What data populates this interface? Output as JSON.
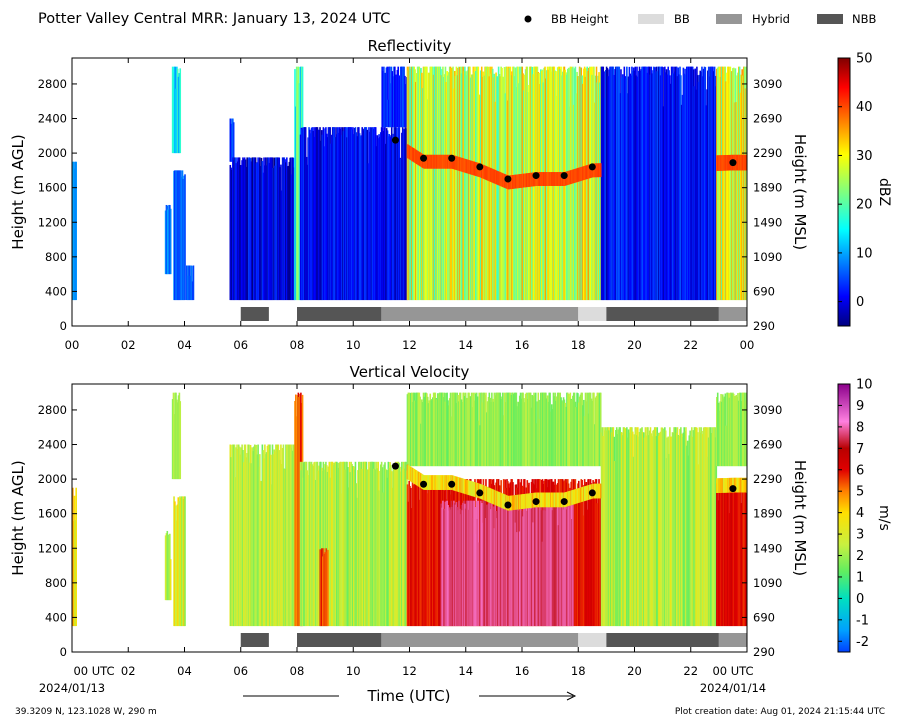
{
  "header": {
    "title": "Potter Valley Central MRR:  January 13, 2024 UTC",
    "legend": [
      {
        "label": "BB Height",
        "kind": "marker",
        "color": "#000000"
      },
      {
        "label": "BB",
        "kind": "box",
        "color": "#dcdcdc"
      },
      {
        "label": "Hybrid",
        "kind": "box",
        "color": "#969696"
      },
      {
        "label": "NBB",
        "kind": "box",
        "color": "#555555"
      }
    ]
  },
  "footer": {
    "location": "39.3209 N, 123.1028 W, 290 m",
    "creation_date": "Plot creation date: Aug 01, 2024 21:15:44 UTC"
  },
  "chart_data": [
    {
      "type": "heatmap",
      "title": "Reflectivity",
      "ylabel": "Height (m AGL)",
      "ylabel_right": "Height (m MSL)",
      "xlim": [
        0,
        24
      ],
      "ylim": [
        0,
        3100
      ],
      "x_ticks": [
        "00",
        "02",
        "04",
        "06",
        "08",
        "10",
        "12",
        "14",
        "16",
        "18",
        "20",
        "22",
        "00"
      ],
      "y_ticks": [
        0,
        400,
        800,
        1200,
        1600,
        2000,
        2400,
        2800
      ],
      "y_ticks_right": [
        "290",
        "690",
        "1090",
        "1490",
        "1890",
        "2290",
        "2690",
        "3090"
      ],
      "colorbar": {
        "label": "dBZ",
        "min": -5,
        "max": 50,
        "ticks": [
          "0",
          "10",
          "20",
          "30",
          "40",
          "50"
        ],
        "tick_values": [
          0,
          10,
          20,
          30,
          40,
          50
        ],
        "colormap": "jet"
      },
      "bb_height": [
        {
          "x": 11.5,
          "y": 2150
        },
        {
          "x": 12.5,
          "y": 1940
        },
        {
          "x": 13.5,
          "y": 1940
        },
        {
          "x": 14.5,
          "y": 1840
        },
        {
          "x": 15.5,
          "y": 1700
        },
        {
          "x": 16.5,
          "y": 1740
        },
        {
          "x": 17.5,
          "y": 1740
        },
        {
          "x": 18.5,
          "y": 1840
        },
        {
          "x": 23.5,
          "y": 1890
        }
      ],
      "rain_type_segments": [
        {
          "start": 6.0,
          "end": 7.0,
          "type": "NBB"
        },
        {
          "start": 8.0,
          "end": 11.0,
          "type": "NBB"
        },
        {
          "start": 11.0,
          "end": 18.0,
          "type": "Hybrid"
        },
        {
          "start": 18.0,
          "end": 19.0,
          "type": "BB"
        },
        {
          "start": 19.0,
          "end": 23.0,
          "type": "NBB"
        },
        {
          "start": 23.0,
          "end": 24.0,
          "type": "Hybrid"
        }
      ],
      "blocks": [
        {
          "x0": 0.0,
          "x1": 0.15,
          "ymin": 300,
          "ymax": 1900,
          "lo": 5,
          "hi": 12
        },
        {
          "x0": 3.3,
          "x1": 3.5,
          "ymin": 600,
          "ymax": 1400,
          "lo": 4,
          "hi": 12
        },
        {
          "x0": 3.55,
          "x1": 3.85,
          "ymin": 2000,
          "ymax": 3000,
          "lo": 8,
          "hi": 20
        },
        {
          "x0": 3.6,
          "x1": 4.0,
          "ymin": 300,
          "ymax": 1800,
          "lo": 3,
          "hi": 10
        },
        {
          "x0": 4.05,
          "x1": 4.3,
          "ymin": 300,
          "ymax": 700,
          "lo": 3,
          "hi": 8
        },
        {
          "x0": 5.6,
          "x1": 5.75,
          "ymin": 1900,
          "ymax": 2400,
          "lo": 0,
          "hi": 8
        },
        {
          "x0": 5.6,
          "x1": 7.9,
          "ymin": 300,
          "ymax": 1950,
          "lo": -5,
          "hi": 5
        },
        {
          "x0": 7.9,
          "x1": 8.2,
          "ymin": 300,
          "ymax": 3000,
          "lo": 10,
          "hi": 25
        },
        {
          "x0": 8.1,
          "x1": 11.9,
          "ymin": 300,
          "ymax": 2300,
          "lo": -3,
          "hi": 5
        },
        {
          "x0": 11.0,
          "x1": 11.9,
          "ymin": 2300,
          "ymax": 3000,
          "lo": 0,
          "hi": 6
        },
        {
          "x0": 11.9,
          "x1": 18.8,
          "ymin": 300,
          "ymax": 3000,
          "lo": 18,
          "hi": 36
        },
        {
          "x0": 18.8,
          "x1": 22.9,
          "ymin": 300,
          "ymax": 3000,
          "lo": -3,
          "hi": 6
        },
        {
          "x0": 22.9,
          "x1": 24.0,
          "ymin": 300,
          "ymax": 3000,
          "lo": 18,
          "hi": 36
        }
      ],
      "bands": [
        {
          "x0": 11.9,
          "x1": 18.8,
          "offset": -40,
          "width": 160,
          "value": 40
        },
        {
          "x0": 22.9,
          "x1": 24.0,
          "offset": 0,
          "width": 180,
          "value": 40
        }
      ]
    },
    {
      "type": "heatmap",
      "title": "Vertical Velocity",
      "ylabel": "Height (m AGL)",
      "ylabel_right": "Height (m MSL)",
      "xlim": [
        0,
        24
      ],
      "ylim": [
        0,
        3100
      ],
      "x_ticks": [
        "00 UTC",
        "02",
        "04",
        "06",
        "08",
        "10",
        "12",
        "14",
        "16",
        "18",
        "20",
        "22",
        "00 UTC"
      ],
      "x_dates": [
        "2024/01/13",
        "2024/01/14"
      ],
      "xlabel": "Time (UTC)",
      "y_ticks": [
        0,
        400,
        800,
        1200,
        1600,
        2000,
        2400,
        2800
      ],
      "y_ticks_right": [
        "290",
        "690",
        "1090",
        "1490",
        "1890",
        "2290",
        "2690",
        "3090"
      ],
      "colorbar": {
        "label": "m/s",
        "min": -2.5,
        "max": 10,
        "ticks": [
          "-2",
          "-1",
          "0",
          "1",
          "2",
          "3",
          "4",
          "5",
          "6",
          "7",
          "8",
          "9",
          "10"
        ],
        "tick_values": [
          -2,
          -1,
          0,
          1,
          2,
          3,
          4,
          5,
          6,
          7,
          8,
          9,
          10
        ],
        "colormap": "velocity"
      },
      "bb_height": [
        {
          "x": 11.5,
          "y": 2150
        },
        {
          "x": 12.5,
          "y": 1940
        },
        {
          "x": 13.5,
          "y": 1940
        },
        {
          "x": 14.5,
          "y": 1840
        },
        {
          "x": 15.5,
          "y": 1700
        },
        {
          "x": 16.5,
          "y": 1740
        },
        {
          "x": 17.5,
          "y": 1740
        },
        {
          "x": 18.5,
          "y": 1840
        },
        {
          "x": 23.5,
          "y": 1890
        }
      ],
      "rain_type_segments": [
        {
          "start": 6.0,
          "end": 7.0,
          "type": "NBB"
        },
        {
          "start": 8.0,
          "end": 11.0,
          "type": "NBB"
        },
        {
          "start": 11.0,
          "end": 18.0,
          "type": "Hybrid"
        },
        {
          "start": 18.0,
          "end": 19.0,
          "type": "BB"
        },
        {
          "start": 19.0,
          "end": 23.0,
          "type": "NBB"
        },
        {
          "start": 23.0,
          "end": 24.0,
          "type": "Hybrid"
        }
      ],
      "blocks": [
        {
          "x0": 0.0,
          "x1": 0.15,
          "ymin": 300,
          "ymax": 1900,
          "lo": 1.5,
          "hi": 5.5
        },
        {
          "x0": 3.3,
          "x1": 3.5,
          "ymin": 600,
          "ymax": 1400,
          "lo": 1.5,
          "hi": 3.5
        },
        {
          "x0": 3.55,
          "x1": 3.85,
          "ymin": 2000,
          "ymax": 3000,
          "lo": 1.5,
          "hi": 2.5
        },
        {
          "x0": 3.6,
          "x1": 4.0,
          "ymin": 300,
          "ymax": 1800,
          "lo": 1.5,
          "hi": 4.5
        },
        {
          "x0": 5.6,
          "x1": 7.9,
          "ymin": 300,
          "ymax": 2400,
          "lo": 1.3,
          "hi": 3.3
        },
        {
          "x0": 7.9,
          "x1": 8.2,
          "ymin": 300,
          "ymax": 3000,
          "lo": 4.5,
          "hi": 6.5
        },
        {
          "x0": 8.1,
          "x1": 11.9,
          "ymin": 300,
          "ymax": 2200,
          "lo": 1.3,
          "hi": 3.5
        },
        {
          "x0": 8.8,
          "x1": 9.1,
          "ymin": 300,
          "ymax": 1200,
          "lo": 5.0,
          "hi": 6.5
        },
        {
          "x0": 11.9,
          "x1": 18.8,
          "ymin": 2150,
          "ymax": 3000,
          "lo": 1.2,
          "hi": 2.5
        },
        {
          "x0": 11.9,
          "x1": 18.8,
          "ymin": 300,
          "ymax": 2000,
          "lo": 5.5,
          "hi": 6.5
        },
        {
          "x0": 13.1,
          "x1": 17.8,
          "ymin": 300,
          "ymax": 1750,
          "lo": 7.3,
          "hi": 8.1
        },
        {
          "x0": 18.8,
          "x1": 22.9,
          "ymin": 300,
          "ymax": 2600,
          "lo": 1.3,
          "hi": 3.5
        },
        {
          "x0": 22.9,
          "x1": 24.0,
          "ymin": 2150,
          "ymax": 3000,
          "lo": 1.2,
          "hi": 2.5
        },
        {
          "x0": 22.9,
          "x1": 24.0,
          "ymin": 300,
          "ymax": 1950,
          "lo": 5.5,
          "hi": 6.5
        }
      ],
      "bands": [
        {
          "x0": 11.9,
          "x1": 18.8,
          "offset": 20,
          "width": 170,
          "value": 3.8
        },
        {
          "x0": 22.9,
          "x1": 24.0,
          "offset": 40,
          "width": 170,
          "value": 3.8
        }
      ]
    }
  ]
}
